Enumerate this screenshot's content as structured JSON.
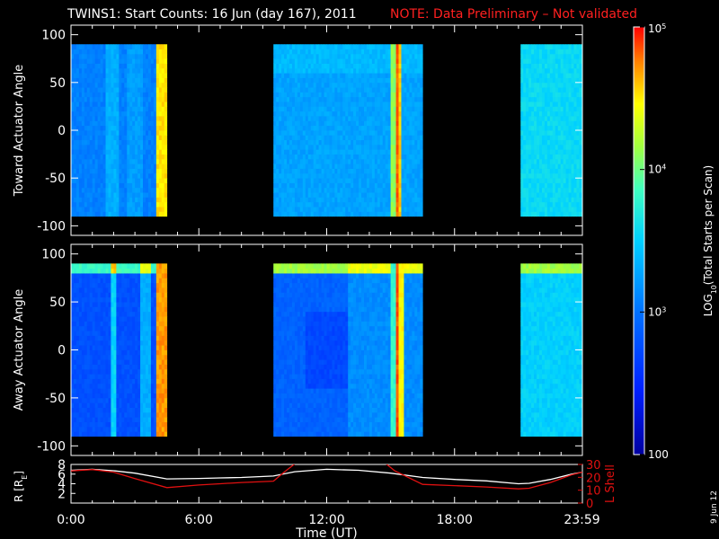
{
  "title": "TWINS1: Start Counts: 16 Jun (day 167), 2011",
  "note": "NOTE: Data Preliminary – Not validated",
  "date_stamp": "9 Jun 12",
  "colors": {
    "background": "#000000",
    "axes": "#ffffff",
    "note": "#ff2020",
    "r_line": "#ffffff",
    "lshell_line": "#e01010"
  },
  "chart_data": [
    {
      "type": "heatmap",
      "title": "",
      "xlabel": "",
      "ylabel": "Toward Actuator Angle",
      "xlim": [
        0,
        24
      ],
      "ylim": [
        -110,
        110
      ],
      "yticks": [
        -100,
        -50,
        0,
        50,
        100
      ],
      "data_angle_range": [
        -90,
        90
      ],
      "data_time_blocks_hours": [
        [
          0,
          4.5
        ],
        [
          9.5,
          16.5
        ],
        [
          21.1,
          24
        ]
      ],
      "colorscale": "log",
      "colorbar": {
        "label": "LOG10(Total Starts per Scan)",
        "min": 100,
        "max": 100000,
        "tick_labels": [
          "10^5",
          "10^4",
          "10^3",
          "100"
        ]
      }
    },
    {
      "type": "heatmap",
      "title": "",
      "xlabel": "",
      "ylabel": "Away Actuator Angle",
      "xlim": [
        0,
        24
      ],
      "ylim": [
        -110,
        110
      ],
      "yticks": [
        -100,
        -50,
        0,
        50,
        100
      ],
      "data_angle_range": [
        -90,
        90
      ],
      "data_time_blocks_hours": [
        [
          0,
          4.5
        ],
        [
          9.5,
          16.5
        ],
        [
          21.1,
          24
        ]
      ],
      "colorscale": "log"
    },
    {
      "type": "line",
      "title": "",
      "xlabel": "Time (UT)",
      "xlim": [
        0,
        24
      ],
      "xtick_labels": [
        "0:00",
        "6:00",
        "12:00",
        "18:00",
        "23:59"
      ],
      "xtick_values": [
        0,
        6,
        12,
        18,
        23.98
      ],
      "left_axis": {
        "label": "R [RE]",
        "ylim": [
          0,
          8
        ],
        "yticks": [
          2,
          4,
          6,
          8
        ]
      },
      "right_axis": {
        "label": "L Shell",
        "ylim": [
          0,
          30
        ],
        "yticks": [
          0,
          10,
          20,
          30
        ]
      },
      "series": [
        {
          "axis": "left",
          "x": [
            0,
            1,
            2,
            3,
            4.5,
            6,
            7,
            8,
            9.5,
            10.5,
            12,
            13.5,
            15,
            16.5,
            18,
            19.5,
            21,
            21.5,
            22.5,
            23.5,
            24
          ],
          "y": [
            6.8,
            7.0,
            6.7,
            6.2,
            5.0,
            5.1,
            5.2,
            5.3,
            5.6,
            6.5,
            7.0,
            6.8,
            6.2,
            5.3,
            4.9,
            4.6,
            4.0,
            4.1,
            4.9,
            6.0,
            6.4
          ]
        },
        {
          "axis": "right",
          "x": [
            0,
            1,
            2,
            3,
            4.5,
            6,
            7,
            8,
            9.5,
            10,
            10.7,
            14.6,
            15.2,
            16.5,
            18,
            19.5,
            21,
            21.5,
            22.5,
            23.5,
            24
          ],
          "y": [
            25,
            26,
            24,
            19,
            12,
            14,
            15,
            16,
            17,
            24,
            33,
            33,
            25,
            14.5,
            13.5,
            12.5,
            11,
            11.5,
            16,
            22,
            24
          ]
        }
      ]
    }
  ]
}
